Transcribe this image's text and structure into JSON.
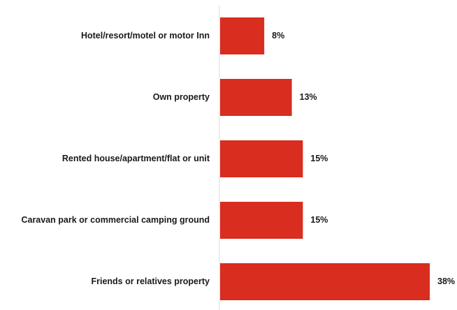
{
  "chart_data": {
    "type": "bar",
    "orientation": "horizontal",
    "categories": [
      "Hotel/resort/motel or motor Inn",
      "Own property",
      "Rented house/apartment/flat or unit",
      "Caravan park or commercial camping ground",
      "Friends or relatives property"
    ],
    "values": [
      8,
      13,
      15,
      15,
      38
    ],
    "value_labels": [
      "8%",
      "13%",
      "15%",
      "15%",
      "38%"
    ],
    "unit": "%",
    "xlim": [
      0,
      38
    ],
    "title": "",
    "xlabel": "",
    "ylabel": "",
    "grid": false,
    "legend": "none",
    "bar_color": "#d92d20",
    "axis_color": "#d9d9d9",
    "text_color": "#1a1a1a"
  }
}
